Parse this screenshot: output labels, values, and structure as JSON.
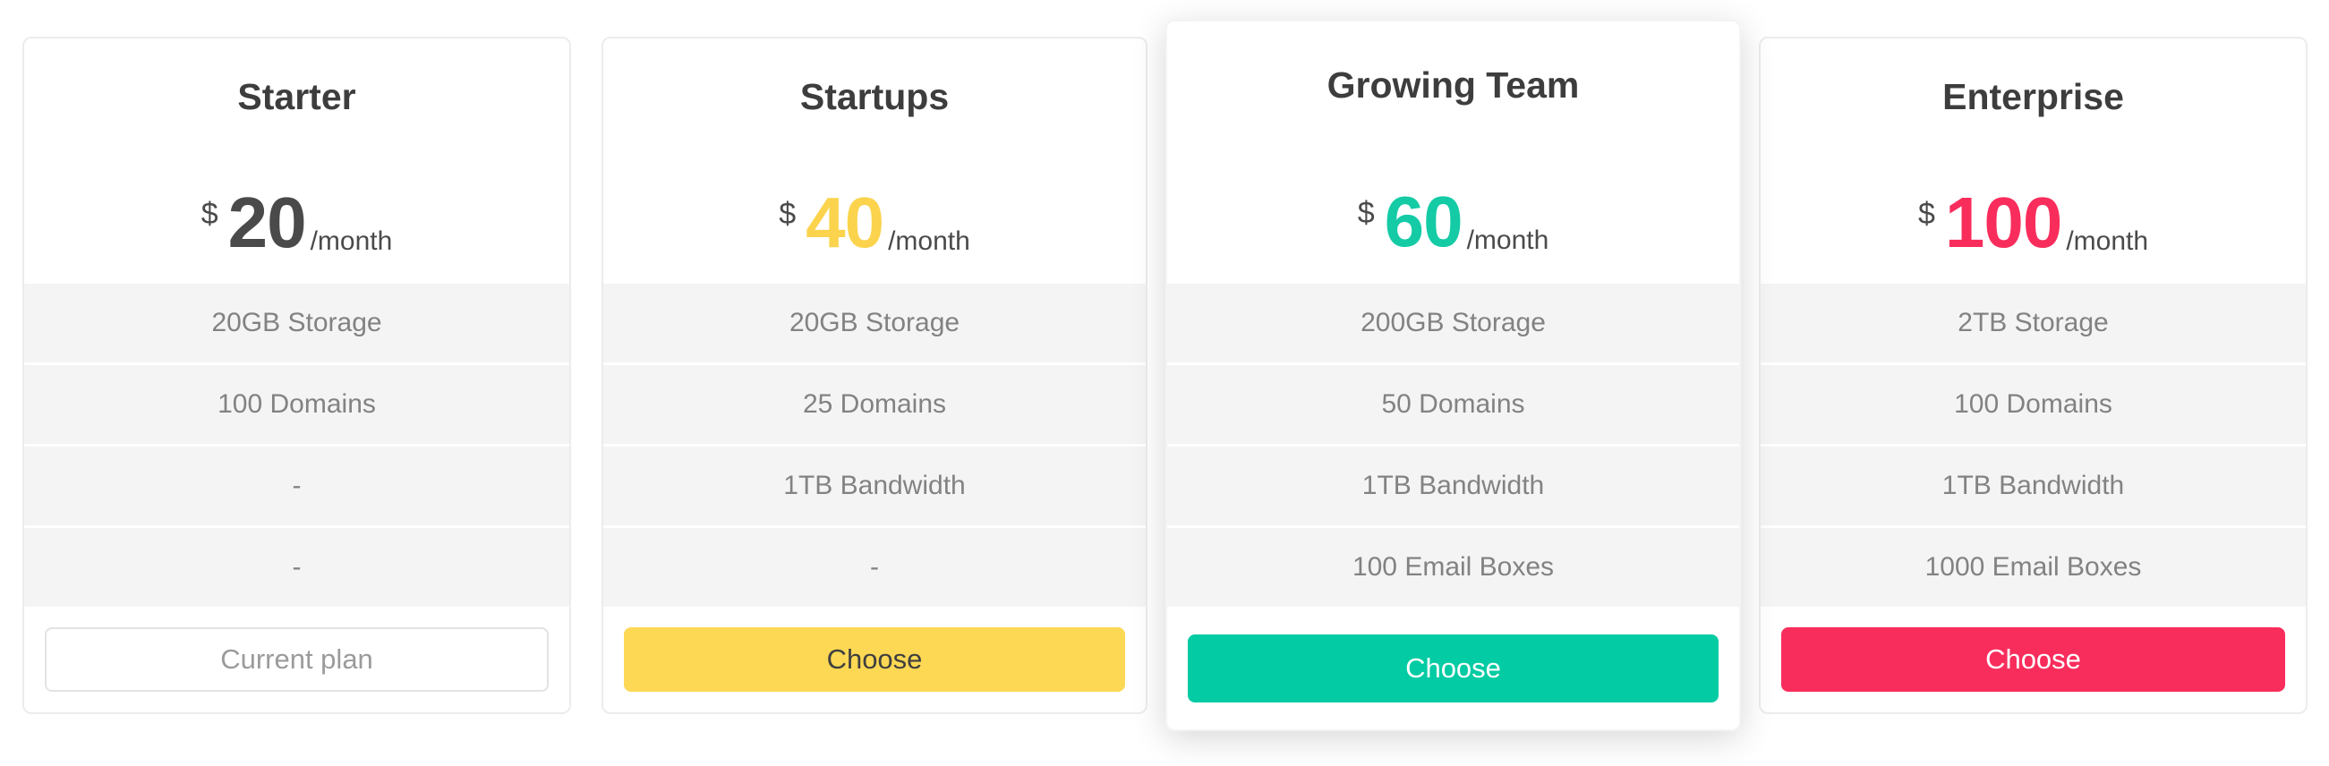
{
  "page": {
    "background": "#ffffff"
  },
  "plans": [
    {
      "name": "Starter",
      "currency": "$",
      "price": "20",
      "period": "/month",
      "price_color": "#4a4a4a",
      "featured": false,
      "features": [
        "20GB Storage",
        "100 Domains",
        "-",
        "-"
      ],
      "button": {
        "label": "Current plan",
        "style": "outline",
        "bg": "#ffffff",
        "text_color": "#9b9b9b",
        "border_color": "#e3e3e3"
      }
    },
    {
      "name": "Startups",
      "currency": "$",
      "price": "40",
      "period": "/month",
      "price_color": "#fbd34d",
      "featured": false,
      "features": [
        "20GB Storage",
        "25 Domains",
        "1TB Bandwidth",
        "-"
      ],
      "button": {
        "label": "Choose",
        "style": "solid",
        "bg": "#fdd854",
        "text_color": "#3f3f3f"
      }
    },
    {
      "name": "Growing Team",
      "currency": "$",
      "price": "60",
      "period": "/month",
      "price_color": "#14cba6",
      "featured": true,
      "features": [
        "200GB Storage",
        "50 Domains",
        "1TB Bandwidth",
        "100 Email Boxes"
      ],
      "button": {
        "label": "Choose",
        "style": "solid",
        "bg": "#03cba3",
        "text_color": "#ffffff"
      }
    },
    {
      "name": "Enterprise",
      "currency": "$",
      "price": "100",
      "period": "/month",
      "price_color": "#f92d5c",
      "featured": false,
      "features": [
        "2TB Storage",
        "100 Domains",
        "1TB Bandwidth",
        "1000 Email Boxes"
      ],
      "button": {
        "label": "Choose",
        "style": "solid",
        "bg": "#f92d5c",
        "text_color": "#ffffff"
      }
    }
  ]
}
